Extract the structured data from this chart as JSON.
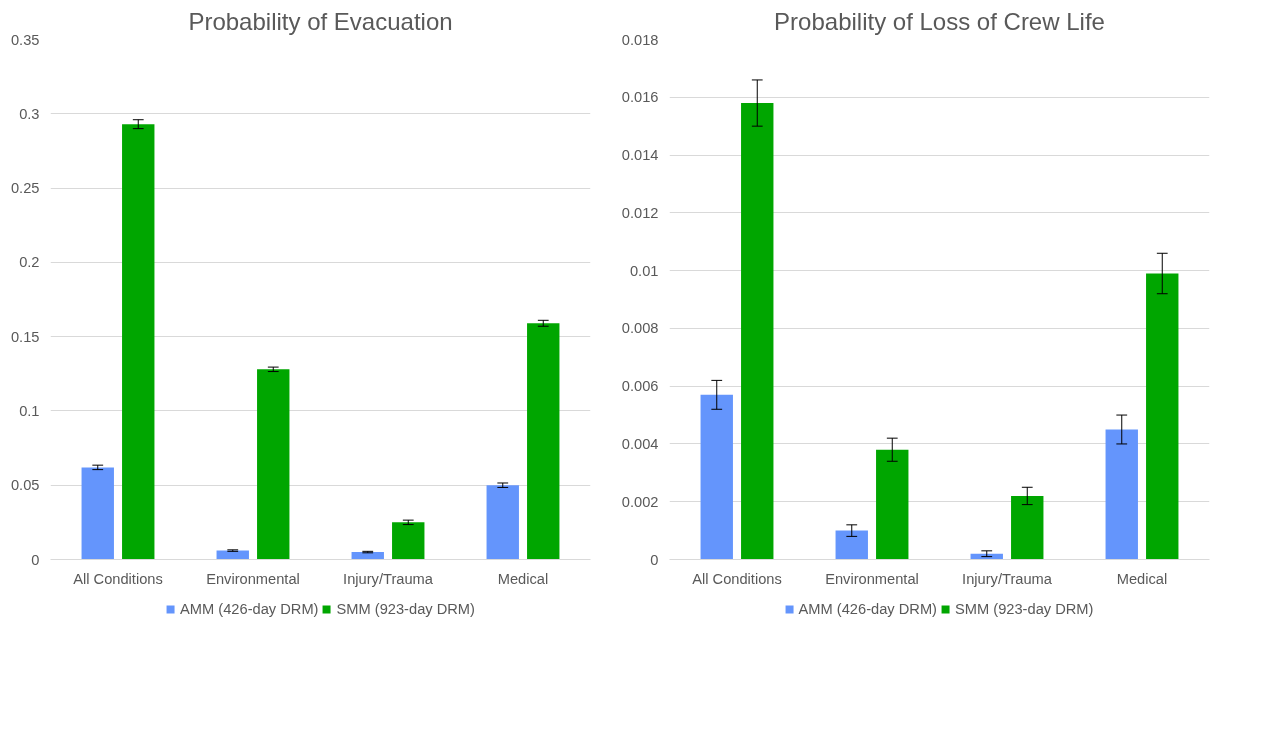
{
  "chart_data": [
    {
      "type": "bar",
      "title": "Probability of Evacuation",
      "categories": [
        "All Conditions",
        "Environmental",
        "Injury/Trauma",
        "Medical"
      ],
      "series": [
        {
          "name": "AMM (426-day DRM)",
          "color": "#6495fc",
          "values": [
            0.062,
            0.006,
            0.005,
            0.05
          ],
          "errors": [
            0.0015,
            0.0005,
            0.0005,
            0.0015
          ]
        },
        {
          "name": "SMM (923-day DRM)",
          "color": "#00a600",
          "values": [
            0.293,
            0.128,
            0.025,
            0.159
          ],
          "errors": [
            0.003,
            0.0015,
            0.0015,
            0.002
          ]
        }
      ],
      "ylim": [
        0,
        0.35
      ],
      "yticks": [
        0,
        0.05,
        0.1,
        0.15,
        0.2,
        0.25,
        0.3,
        0.35
      ],
      "grid": "y",
      "legend": "bottom"
    },
    {
      "type": "bar",
      "title": "Probability of Loss of Crew Life",
      "categories": [
        "All Conditions",
        "Environmental",
        "Injury/Trauma",
        "Medical"
      ],
      "series": [
        {
          "name": "AMM (426-day DRM)",
          "color": "#6495fc",
          "values": [
            0.0057,
            0.001,
            0.0002,
            0.0045
          ],
          "errors": [
            0.0005,
            0.0002,
            0.0001,
            0.0005
          ]
        },
        {
          "name": "SMM (923-day DRM)",
          "color": "#00a600",
          "values": [
            0.0158,
            0.0038,
            0.0022,
            0.0099
          ],
          "errors": [
            0.0008,
            0.0004,
            0.0003,
            0.0007
          ]
        }
      ],
      "ylim": [
        0,
        0.018
      ],
      "yticks": [
        0,
        0.002,
        0.004,
        0.006,
        0.008,
        0.01,
        0.012,
        0.014,
        0.016,
        0.018
      ],
      "grid": "y",
      "legend": "bottom"
    }
  ]
}
